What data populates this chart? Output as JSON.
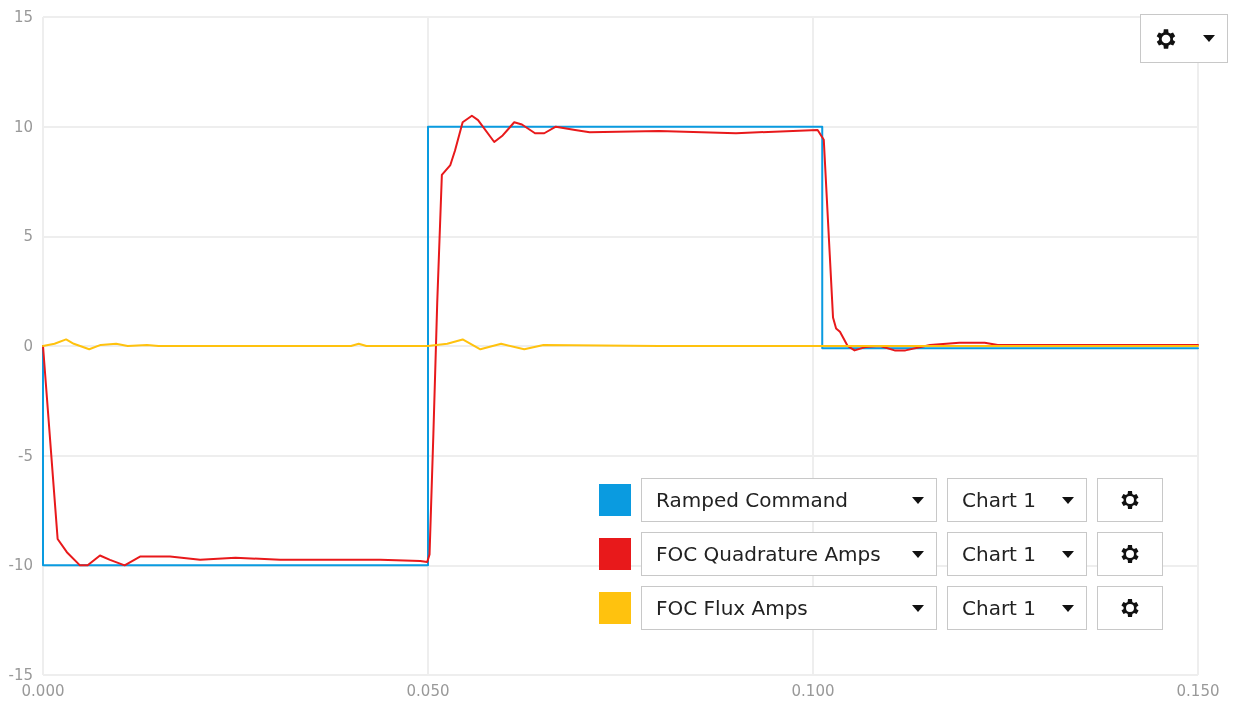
{
  "chart_data": {
    "type": "line",
    "xlim": [
      0,
      0.15
    ],
    "xticks": [
      {
        "value": 0,
        "label": "0.000"
      },
      {
        "value": 0.05,
        "label": "0.050"
      },
      {
        "value": 0.1,
        "label": "0.100"
      },
      {
        "value": 0.15,
        "label": "0.150"
      }
    ],
    "ylim": [
      -15,
      15
    ],
    "yticks": [
      -15,
      -10,
      -5,
      0,
      5,
      10,
      15
    ],
    "grid": true,
    "legend": "bottom right",
    "marker": "none",
    "line_style": "solid",
    "annotations": [
      "Chart 1",
      "Chart 1",
      "Chart 1"
    ],
    "series": [
      {
        "name": "Ramped Command",
        "color": "#0a9be0",
        "x": [
          0,
          0,
          0.05,
          0.05,
          0.1012,
          0.1012,
          0.15
        ],
        "values": [
          0,
          -10,
          -10,
          10,
          10,
          -0.1,
          -0.1
        ]
      },
      {
        "name": "FOC Quadrature Amps",
        "color": "#e8191b",
        "x": [
          0,
          0.0019,
          0.0031,
          0.0048,
          0.0058,
          0.0074,
          0.0087,
          0.0106,
          0.0126,
          0.0165,
          0.0204,
          0.025,
          0.0308,
          0.0373,
          0.0438,
          0.049,
          0.0499,
          0.0502,
          0.0507,
          0.0512,
          0.0518,
          0.0529,
          0.0535,
          0.0545,
          0.0557,
          0.0565,
          0.0586,
          0.0597,
          0.0612,
          0.0622,
          0.0639,
          0.0651,
          0.0666,
          0.0691,
          0.071,
          0.08,
          0.09,
          0.1006,
          0.1014,
          0.1026,
          0.103,
          0.1035,
          0.1045,
          0.1054,
          0.1068,
          0.1087,
          0.1106,
          0.112,
          0.1152,
          0.119,
          0.1223,
          0.124,
          0.15
        ],
        "values": [
          0,
          -8.8,
          -9.4,
          -10,
          -10,
          -9.55,
          -9.75,
          -10,
          -9.6,
          -9.6,
          -9.75,
          -9.65,
          -9.75,
          -9.75,
          -9.75,
          -9.8,
          -9.85,
          -9.5,
          -4,
          2,
          7.8,
          8.25,
          8.9,
          10.2,
          10.5,
          10.3,
          9.3,
          9.6,
          10.2,
          10.1,
          9.7,
          9.7,
          10,
          9.85,
          9.75,
          9.8,
          9.7,
          9.85,
          9.4,
          1.3,
          0.8,
          0.65,
          0,
          -0.2,
          -0.05,
          0,
          -0.2,
          -0.2,
          0.05,
          0.15,
          0.15,
          0.05,
          0.05
        ]
      },
      {
        "name": "FOC Flux Amps",
        "color": "#ffc20e",
        "x": [
          0,
          0.0015,
          0.003,
          0.004,
          0.006,
          0.0075,
          0.0095,
          0.011,
          0.0135,
          0.015,
          0.04,
          0.041,
          0.042,
          0.05,
          0.0525,
          0.0545,
          0.0568,
          0.0595,
          0.0625,
          0.065,
          0.08,
          0.1,
          0.15
        ],
        "values": [
          0,
          0.1,
          0.3,
          0.1,
          -0.15,
          0.05,
          0.1,
          0,
          0.05,
          0,
          0,
          0.1,
          0,
          0,
          0.1,
          0.3,
          -0.15,
          0.1,
          -0.15,
          0.05,
          0,
          0,
          0
        ]
      }
    ]
  }
}
